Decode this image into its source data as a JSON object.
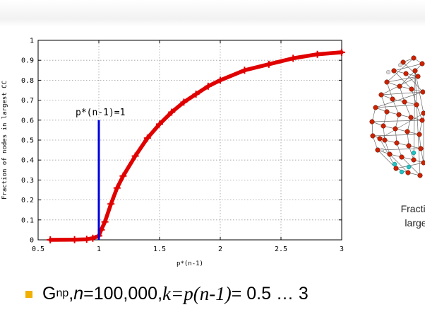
{
  "chart_data": {
    "type": "line",
    "title": "",
    "xlabel": "p*(n-1)",
    "ylabel": "Fraction of nodes in largest CC",
    "xlim": [
      0.5,
      3
    ],
    "ylim": [
      0,
      1
    ],
    "x_ticks": [
      "0.5",
      "1",
      "1.5",
      "2",
      "2.5",
      "3"
    ],
    "y_ticks": [
      "0",
      "0.1",
      "0.2",
      "0.3",
      "0.4",
      "0.5",
      "0.6",
      "0.7",
      "0.8",
      "0.9",
      "1"
    ],
    "grid": true,
    "series": [
      {
        "color": "#e00000",
        "x": [
          0.6,
          0.8,
          0.9,
          0.95,
          1.0,
          1.02,
          1.05,
          1.1,
          1.15,
          1.2,
          1.3,
          1.4,
          1.5,
          1.6,
          1.7,
          1.8,
          1.9,
          2.0,
          2.2,
          2.4,
          2.6,
          2.8,
          3.0
        ],
        "y": [
          0.0,
          0.001,
          0.003,
          0.008,
          0.02,
          0.05,
          0.09,
          0.18,
          0.26,
          0.32,
          0.42,
          0.51,
          0.58,
          0.64,
          0.69,
          0.73,
          0.77,
          0.8,
          0.85,
          0.88,
          0.91,
          0.93,
          0.94
        ]
      }
    ],
    "vertical_line": {
      "x": 1,
      "y_top": 0.6,
      "color": "#0000dd"
    },
    "annotation": {
      "text": "p*(n-1)=1",
      "x": 1,
      "y": 0.6
    }
  },
  "side_caption": {
    "line1": "Fractio",
    "line2": "large"
  },
  "bullet": {
    "g": "G",
    "sub": "np",
    "sep1": ", ",
    "n_var": "n",
    "n_value": "=100,000, ",
    "k_expr": "k=p(n-1)",
    "range": " = 0.5 … 3"
  },
  "colors": {
    "curve": "#e00000",
    "threshold": "#0000dd",
    "bullet": "#f0b000",
    "node": "#cc2200",
    "node_alt": "#22c4c4"
  }
}
